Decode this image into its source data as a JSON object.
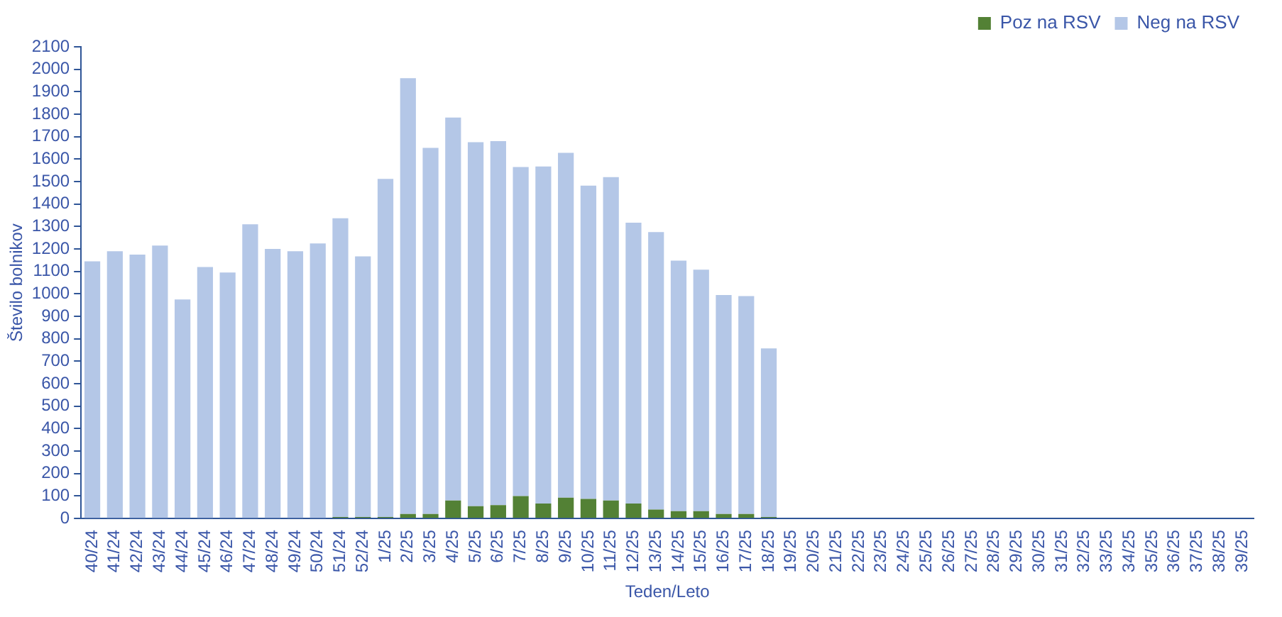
{
  "chart_data": {
    "type": "bar",
    "stacked": true,
    "xlabel": "Teden/Leto",
    "ylabel": "Število bolnikov",
    "categories": [
      "40/24",
      "41/24",
      "42/24",
      "43/24",
      "44/24",
      "45/24",
      "46/24",
      "47/24",
      "48/24",
      "49/24",
      "50/24",
      "51/24",
      "52/24",
      "1/25",
      "2/25",
      "3/25",
      "4/25",
      "5/25",
      "6/25",
      "7/25",
      "8/25",
      "9/25",
      "10/25",
      "11/25",
      "12/25",
      "13/25",
      "14/25",
      "15/25",
      "16/25",
      "17/25",
      "18/25",
      "19/25",
      "20/25",
      "21/25",
      "22/25",
      "23/25",
      "24/25",
      "25/25",
      "26/25",
      "27/25",
      "28/25",
      "29/25",
      "30/25",
      "31/25",
      "32/25",
      "33/25",
      "34/25",
      "35/25",
      "36/25",
      "37/25",
      "38/25",
      "39/25"
    ],
    "series": [
      {
        "name": "Poz na RSV",
        "color": "#538135",
        "values": [
          0,
          0,
          0,
          0,
          0,
          0,
          0,
          0,
          0,
          0,
          0,
          7,
          7,
          7,
          20,
          20,
          80,
          55,
          60,
          100,
          67,
          93,
          87,
          80,
          67,
          40,
          33,
          33,
          20,
          20,
          7,
          null,
          null,
          null,
          null,
          null,
          null,
          null,
          null,
          null,
          null,
          null,
          null,
          null,
          null,
          null,
          null,
          null,
          null,
          null,
          null,
          null
        ]
      },
      {
        "name": "Neg na RSV",
        "color": "#b4c7e7",
        "values": [
          1145,
          1190,
          1175,
          1215,
          975,
          1120,
          1095,
          1310,
          1200,
          1190,
          1225,
          1330,
          1160,
          1505,
          1940,
          1630,
          1705,
          1620,
          1620,
          1465,
          1500,
          1535,
          1395,
          1440,
          1250,
          1235,
          1115,
          1075,
          975,
          970,
          750,
          null,
          null,
          null,
          null,
          null,
          null,
          null,
          null,
          null,
          null,
          null,
          null,
          null,
          null,
          null,
          null,
          null,
          null,
          null,
          null,
          null
        ]
      }
    ],
    "ylim": [
      0,
      2100
    ],
    "yticks": [
      0,
      100,
      200,
      300,
      400,
      500,
      600,
      700,
      800,
      900,
      1000,
      1100,
      1200,
      1300,
      1400,
      1500,
      1600,
      1700,
      1800,
      1900,
      2000,
      2100
    ],
    "grid": false,
    "legend": "top right"
  }
}
